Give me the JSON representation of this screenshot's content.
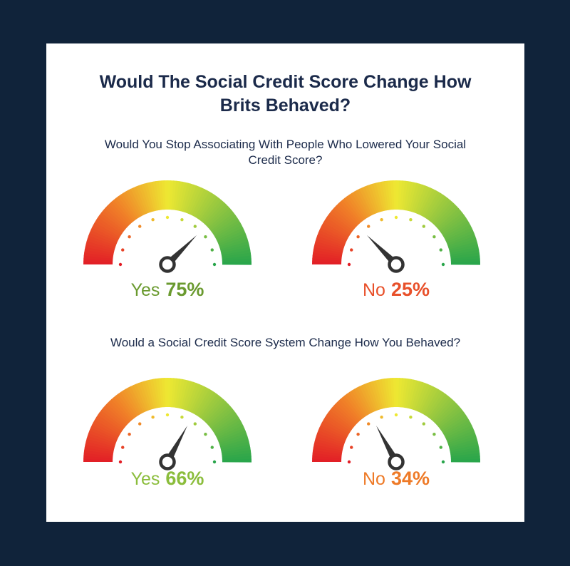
{
  "title": "Would The Social Credit Score Change How Brits Behaved?",
  "colors": {
    "background": "#10233a",
    "card": "#ffffff",
    "text": "#1b2a4a",
    "needle": "#333333"
  },
  "chart_data": [
    {
      "type": "gauge",
      "question": "Would You Stop Associating With People Who Lowered Your Social Credit Score?",
      "range": [
        0,
        100
      ],
      "gauges": [
        {
          "label": "Yes",
          "value": 75,
          "value_text": "75%",
          "color": "#6a9a2f"
        },
        {
          "label": "No",
          "value": 25,
          "value_text": "25%",
          "color": "#e8502a"
        }
      ]
    },
    {
      "type": "gauge",
      "question": "Would a Social Credit Score System Change How You Behaved?",
      "range": [
        0,
        100
      ],
      "gauges": [
        {
          "label": "Yes",
          "value": 66,
          "value_text": "66%",
          "color": "#8bbd3c"
        },
        {
          "label": "No",
          "value": 34,
          "value_text": "34%",
          "color": "#ee7a27"
        }
      ]
    }
  ]
}
